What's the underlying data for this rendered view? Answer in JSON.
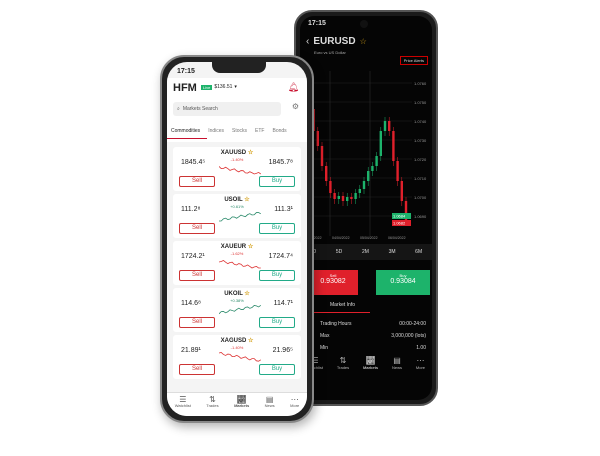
{
  "right_phone": {
    "time": "17:15",
    "symbol": "EURUSD",
    "subtitle": "Euro vs US Dollar",
    "alert_button": "Price Alerts",
    "price_ticks": [
      "1.0760",
      "1.0750",
      "1.0740",
      "1.0730",
      "1.0720",
      "1.0710",
      "1.0700",
      "1.0690"
    ],
    "price_tags": [
      "1.0684",
      "1.0682"
    ],
    "date_ticks": [
      "03/04/2022",
      "04/04/2022",
      "05/04/2022",
      "06/04/2022"
    ],
    "timeframes": [
      "1D",
      "5D",
      "2M",
      "3M",
      "6M"
    ],
    "sell": {
      "label": "Sell",
      "price": "0.93082"
    },
    "buy": {
      "label": "Buy",
      "price": "0.93084"
    },
    "tab": "Market Info",
    "info": [
      {
        "k": "Trading Hours",
        "v": "00:00-24:00"
      },
      {
        "k": "Max",
        "v": "3,000,000 (lots)"
      },
      {
        "k": "Min",
        "v": "1.00"
      }
    ],
    "nav": [
      "Watchlist",
      "Trades",
      "Markets",
      "News",
      "More"
    ],
    "colors": {
      "up": "#1db36b",
      "down": "#e0202b",
      "bg": "#050505"
    }
  },
  "left_phone": {
    "time": "17:15",
    "logo": "HFM",
    "account_badge": "Live",
    "balance": "$136.51",
    "search_placeholder": "Markets Search",
    "tabs": [
      "Commodities",
      "Indices",
      "Stocks",
      "ETF",
      "Bonds"
    ],
    "instruments": [
      {
        "symbol": "XAUUSD",
        "sell": "1845.4⁵",
        "buy": "1845.7⁸",
        "change": "-1.40%",
        "trend": "down"
      },
      {
        "symbol": "USOIL",
        "sell": "111.2⁸",
        "buy": "111.3¹",
        "change": "+0.61%",
        "trend": "up"
      },
      {
        "symbol": "XAUEUR",
        "sell": "1724.2¹",
        "buy": "1724.7⁴",
        "change": "-1.62%",
        "trend": "down"
      },
      {
        "symbol": "UKOIL",
        "sell": "114.6⁸",
        "buy": "114.7¹",
        "change": "+0.38%",
        "trend": "up"
      },
      {
        "symbol": "XAGUSD",
        "sell": "21.89¹",
        "buy": "21.96⁵",
        "change": "-1.40%",
        "trend": "down"
      }
    ],
    "sell_label": "Sell",
    "buy_label": "Buy",
    "nav": [
      "Watchlist",
      "Trades",
      "Markets",
      "News",
      "More"
    ],
    "colors": {
      "brand": "#c8102e",
      "buy": "#2a8a6a",
      "sell": "#c33"
    }
  }
}
